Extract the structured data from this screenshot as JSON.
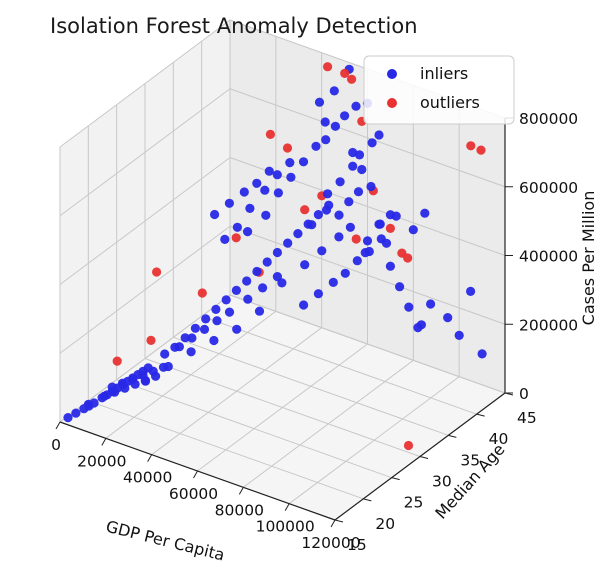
{
  "chart_data": {
    "type": "scatter",
    "projection": "3d",
    "title": "Isolation Forest Anomaly Detection",
    "xlabel": "GDP Per Capita",
    "ylabel": "Median Age",
    "zlabel": "Cases Per Million",
    "xlim": [
      0,
      120000
    ],
    "ylim": [
      15,
      45
    ],
    "zlim": [
      0,
      800000
    ],
    "x_ticks": [
      "0",
      "20000",
      "40000",
      "60000",
      "80000",
      "100000",
      "120000"
    ],
    "y_ticks": [
      "15",
      "20",
      "25",
      "30",
      "35",
      "40",
      "45"
    ],
    "z_ticks": [
      "0",
      "200000",
      "400000",
      "600000",
      "800000"
    ],
    "grid": true,
    "legend_position": "top-right",
    "series": [
      {
        "name": "inliers",
        "color": "#2828e6",
        "points": [
          [
            1000,
            16,
            3000
          ],
          [
            2000,
            17,
            6000
          ],
          [
            3000,
            18,
            9000
          ],
          [
            4000,
            18.5,
            13000
          ],
          [
            5000,
            19,
            18000
          ],
          [
            6000,
            20,
            23000
          ],
          [
            7000,
            20.5,
            28000
          ],
          [
            8000,
            21,
            34000
          ],
          [
            9000,
            21.5,
            40000
          ],
          [
            10000,
            22,
            46000
          ],
          [
            11000,
            22.5,
            52000
          ],
          [
            12000,
            23,
            58000
          ],
          [
            13000,
            23.5,
            64000
          ],
          [
            14000,
            24,
            70000
          ],
          [
            15000,
            24.5,
            76000
          ],
          [
            2500,
            19,
            8000
          ],
          [
            4500,
            21,
            12000
          ],
          [
            6500,
            22,
            16000
          ],
          [
            8500,
            23,
            20000
          ],
          [
            10500,
            24,
            24000
          ],
          [
            12500,
            25,
            28000
          ],
          [
            14500,
            26,
            32000
          ],
          [
            3000,
            23,
            10000
          ],
          [
            5000,
            24,
            14000
          ],
          [
            7000,
            25,
            18000
          ],
          [
            9000,
            26,
            22000
          ],
          [
            11000,
            27,
            26000
          ],
          [
            13000,
            28,
            30000
          ],
          [
            16000,
            27,
            88000
          ],
          [
            18000,
            28,
            100000
          ],
          [
            20000,
            29,
            120000
          ],
          [
            22000,
            30,
            140000
          ],
          [
            24000,
            31,
            160000
          ],
          [
            26000,
            32,
            180000
          ],
          [
            28000,
            33,
            200000
          ],
          [
            30000,
            34,
            220000
          ],
          [
            32000,
            35,
            240000
          ],
          [
            34000,
            36,
            260000
          ],
          [
            36000,
            37,
            280000
          ],
          [
            38000,
            38,
            300000
          ],
          [
            40000,
            39,
            320000
          ],
          [
            42000,
            40,
            340000
          ],
          [
            44000,
            41,
            360000
          ],
          [
            46000,
            42,
            380000
          ],
          [
            48000,
            43,
            400000
          ],
          [
            25000,
            38,
            330000
          ],
          [
            28000,
            40,
            360000
          ],
          [
            31000,
            41,
            420000
          ],
          [
            34000,
            42,
            460000
          ],
          [
            37000,
            43,
            500000
          ],
          [
            40000,
            44,
            540000
          ],
          [
            43000,
            44.5,
            560000
          ],
          [
            46000,
            45,
            600000
          ],
          [
            20000,
            36,
            320000
          ],
          [
            23000,
            37,
            350000
          ],
          [
            26000,
            38,
            400000
          ],
          [
            30000,
            39,
            450000
          ],
          [
            33000,
            40,
            490000
          ],
          [
            36000,
            41,
            520000
          ],
          [
            50000,
            42,
            450000
          ],
          [
            53000,
            43,
            480000
          ],
          [
            56000,
            44,
            520000
          ],
          [
            59000,
            44,
            560000
          ],
          [
            62000,
            45,
            590000
          ],
          [
            65000,
            45,
            620000
          ],
          [
            48000,
            40,
            380000
          ],
          [
            52000,
            41,
            420000
          ],
          [
            55000,
            42,
            400000
          ],
          [
            58000,
            42.5,
            440000
          ],
          [
            61000,
            43,
            470000
          ],
          [
            35000,
            40,
            180000
          ],
          [
            40000,
            42,
            220000
          ],
          [
            45000,
            43,
            260000
          ],
          [
            50000,
            44,
            300000
          ],
          [
            55000,
            44,
            340000
          ],
          [
            60000,
            45,
            300000
          ],
          [
            65000,
            45,
            360000
          ],
          [
            70000,
            45,
            400000
          ],
          [
            42000,
            41,
            120000
          ],
          [
            46000,
            42,
            150000
          ],
          [
            50000,
            43,
            180000
          ],
          [
            54000,
            43.5,
            210000
          ],
          [
            58000,
            44,
            250000
          ],
          [
            62000,
            44.5,
            280000
          ],
          [
            66000,
            45,
            320000
          ],
          [
            70000,
            45,
            250000
          ],
          [
            74000,
            45,
            200000
          ],
          [
            78000,
            45,
            150000
          ],
          [
            82000,
            45,
            100000
          ],
          [
            86000,
            44,
            130000
          ],
          [
            30000,
            36,
            170000
          ],
          [
            34000,
            37,
            200000
          ],
          [
            38000,
            38,
            230000
          ],
          [
            27000,
            34,
            150000
          ],
          [
            24000,
            33,
            130000
          ],
          [
            21000,
            32,
            110000
          ],
          [
            18000,
            31,
            90000
          ],
          [
            15000,
            30,
            70000
          ],
          [
            44000,
            44,
            620000
          ],
          [
            50000,
            45,
            640000
          ],
          [
            55000,
            45,
            680000
          ],
          [
            60000,
            45,
            700000
          ],
          [
            80000,
            45,
            380000
          ],
          [
            85000,
            45,
            440000
          ],
          [
            75000,
            44,
            420000
          ],
          [
            68000,
            44,
            380000
          ],
          [
            72000,
            43.5,
            340000
          ],
          [
            64000,
            43,
            300000
          ],
          [
            90000,
            44,
            200000
          ],
          [
            95000,
            45,
            160000
          ],
          [
            100000,
            45,
            120000
          ],
          [
            105000,
            45,
            260000
          ],
          [
            110000,
            45,
            90000
          ],
          [
            40000,
            30,
            180000
          ],
          [
            45000,
            32,
            220000
          ],
          [
            35000,
            28,
            160000
          ],
          [
            30000,
            26,
            140000
          ],
          [
            25000,
            24,
            110000
          ],
          [
            20000,
            22,
            80000
          ],
          [
            18000,
            35,
            400000
          ],
          [
            22000,
            36,
            430000
          ],
          [
            26000,
            37,
            460000
          ],
          [
            29000,
            38,
            480000
          ],
          [
            32000,
            39,
            510000
          ],
          [
            52000,
            45,
            780000
          ],
          [
            48000,
            44,
            720000
          ],
          [
            44000,
            43,
            690000
          ],
          [
            56000,
            44,
            560000
          ],
          [
            60000,
            44,
            520000
          ],
          [
            64000,
            44,
            480000
          ]
        ]
      },
      {
        "name": "outliers",
        "color": "#e83232",
        "points": [
          [
            20000,
            17,
            200000
          ],
          [
            30000,
            40,
            600000
          ],
          [
            35000,
            41,
            560000
          ],
          [
            40000,
            42,
            380000
          ],
          [
            45000,
            43,
            420000
          ],
          [
            25000,
            30,
            250000
          ],
          [
            15000,
            25,
            150000
          ],
          [
            10000,
            28,
            300000
          ],
          [
            50000,
            42,
            820000
          ],
          [
            55000,
            43,
            800000
          ],
          [
            58000,
            43,
            790000
          ],
          [
            60000,
            44,
            660000
          ],
          [
            65000,
            44,
            470000
          ],
          [
            70000,
            45,
            360000
          ],
          [
            75000,
            45,
            300000
          ],
          [
            60000,
            43,
            330000
          ],
          [
            80000,
            44,
            310000
          ],
          [
            110000,
            43,
            720000
          ],
          [
            112000,
            44,
            700000
          ],
          [
            115000,
            30,
            20000
          ],
          [
            20000,
            38,
            300000
          ],
          [
            35000,
            36,
            260000
          ]
        ]
      }
    ]
  },
  "legend": {
    "inliers_label": "inliers",
    "outliers_label": "outliers"
  }
}
